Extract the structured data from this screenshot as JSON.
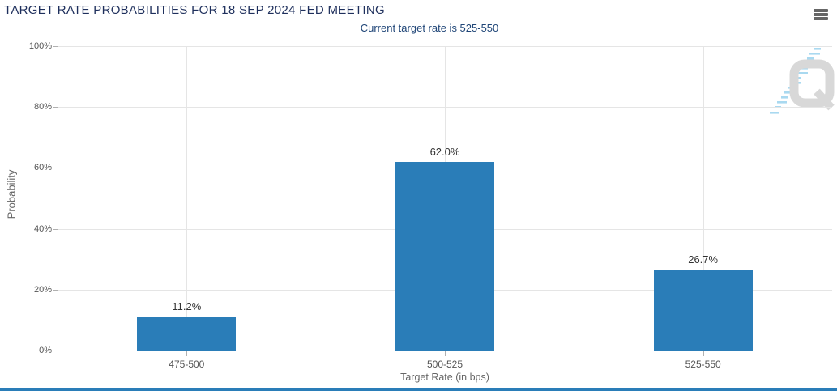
{
  "header": {
    "title": "TARGET RATE PROBABILITIES FOR 18 SEP 2024 FED MEETING",
    "subtitle": "Current target rate is 525-550",
    "menu_icon": "hamburger-menu-icon"
  },
  "chart_data": {
    "type": "bar",
    "title": "TARGET RATE PROBABILITIES FOR 18 SEP 2024 FED MEETING",
    "subtitle": "Current target rate is 525-550",
    "categories": [
      "475-500",
      "500-525",
      "525-550"
    ],
    "values": [
      11.2,
      62.0,
      26.7
    ],
    "value_labels": [
      "11.2%",
      "62.0%",
      "26.7%"
    ],
    "xlabel": "Target Rate (in bps)",
    "ylabel": "Probability",
    "ylim": [
      0,
      100
    ],
    "ytick_step": 20,
    "ytick_labels": [
      "0%",
      "20%",
      "40%",
      "60%",
      "80%",
      "100%"
    ],
    "grid": true,
    "legend": "none",
    "bar_color": "#2a7db8"
  },
  "watermark": {
    "glyph": "Q",
    "name": "q-logo-watermark"
  },
  "colors": {
    "title": "#1e2f5c",
    "subtitle": "#1f4577",
    "bar": "#2a7db8",
    "axis_line": "#b0b0b0",
    "gridline": "#e5e5e5",
    "tick_label": "#545454",
    "axis_title": "#666666",
    "data_label": "#333333",
    "menu_icon": "#666666",
    "accent_bar": "#2a7db8",
    "watermark_gray": "#d8d8d8",
    "watermark_blue": "#a9d9f0"
  }
}
